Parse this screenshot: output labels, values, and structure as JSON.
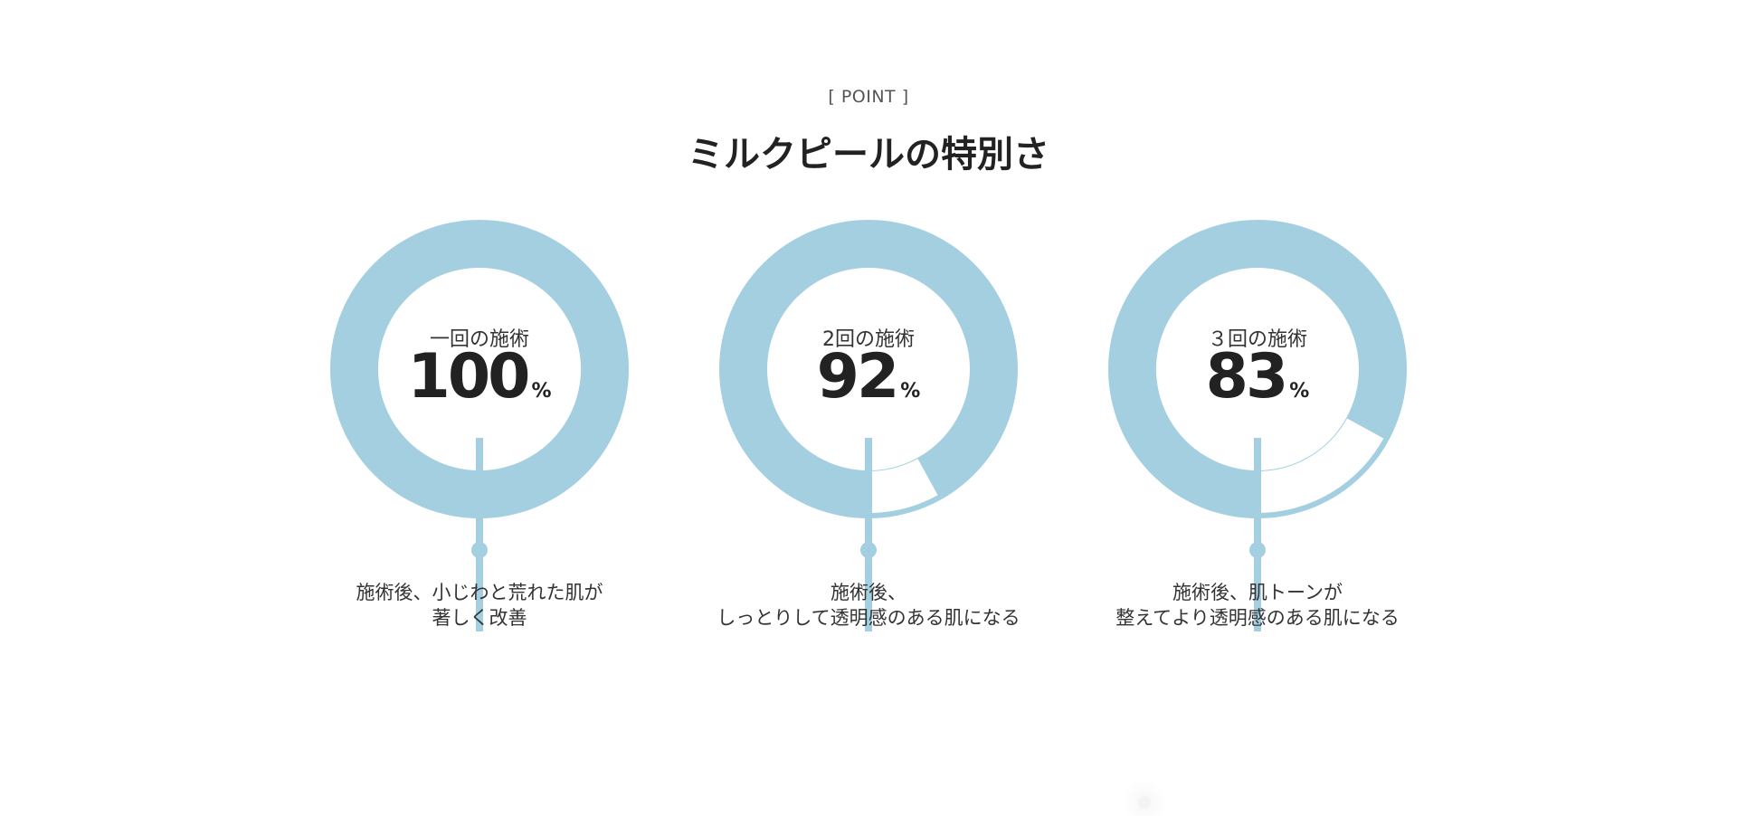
{
  "header": {
    "eyebrow": "[ POINT ]",
    "title": "ミルクピールの特別さ"
  },
  "colors": {
    "ring": "#a3cfe1",
    "text": "#222222"
  },
  "points": [
    {
      "label": "一回の施術",
      "value": "100",
      "unit": "%",
      "percent": 100,
      "caption": [
        "施術後、小じわと荒れた肌が",
        "著しく改善"
      ]
    },
    {
      "label": "2回の施術",
      "value": "92",
      "unit": "%",
      "percent": 92,
      "caption": [
        "施術後、",
        "しっとりして透明感のある肌になる"
      ]
    },
    {
      "label": "３回の施術",
      "value": "83",
      "unit": "%",
      "percent": 83,
      "caption": [
        "施術後、肌トーンが",
        "整えてより透明感のある肌になる"
      ]
    }
  ]
}
